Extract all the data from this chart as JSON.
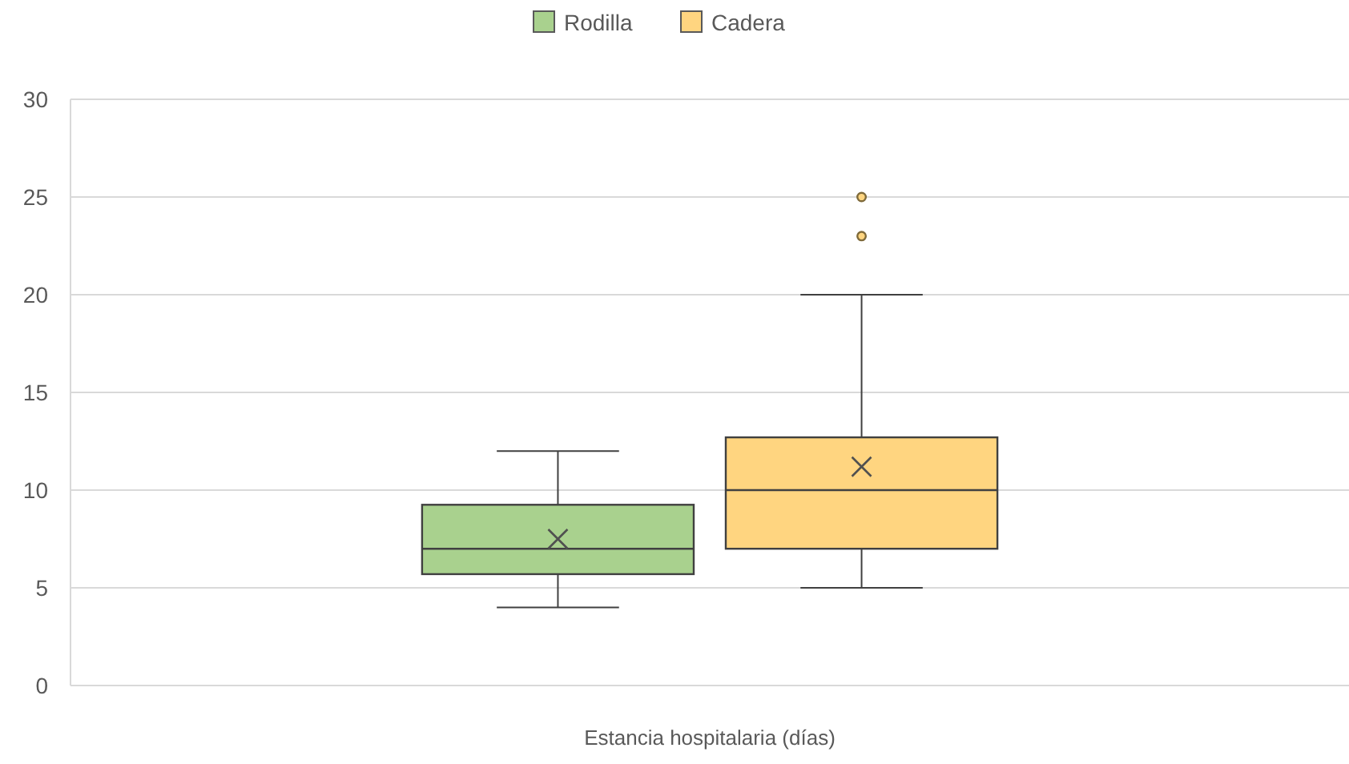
{
  "chart_data": {
    "type": "box",
    "xlabel": "Estancia hospitalaria (días)",
    "categories": [
      null
    ],
    "series": [
      {
        "name": "Rodilla",
        "color": "#a9d18e",
        "boxes": [
          {
            "low": 4,
            "q1": 5.7,
            "median": 7,
            "q3": 9.25,
            "high": 12,
            "mean": 7.5
          }
        ]
      },
      {
        "name": "Cadera",
        "color": "#ffd580",
        "boxes": [
          {
            "low": 5,
            "q1": 7,
            "median": 10,
            "q3": 12.7,
            "high": 20,
            "mean": 11.2,
            "outliers": [
              23,
              25
            ]
          }
        ]
      }
    ],
    "ylim": [
      0,
      30
    ],
    "yticks": [
      0,
      5,
      10,
      15,
      20,
      25,
      30
    ],
    "grid": "y",
    "legend": "top",
    "marker": "circle"
  }
}
